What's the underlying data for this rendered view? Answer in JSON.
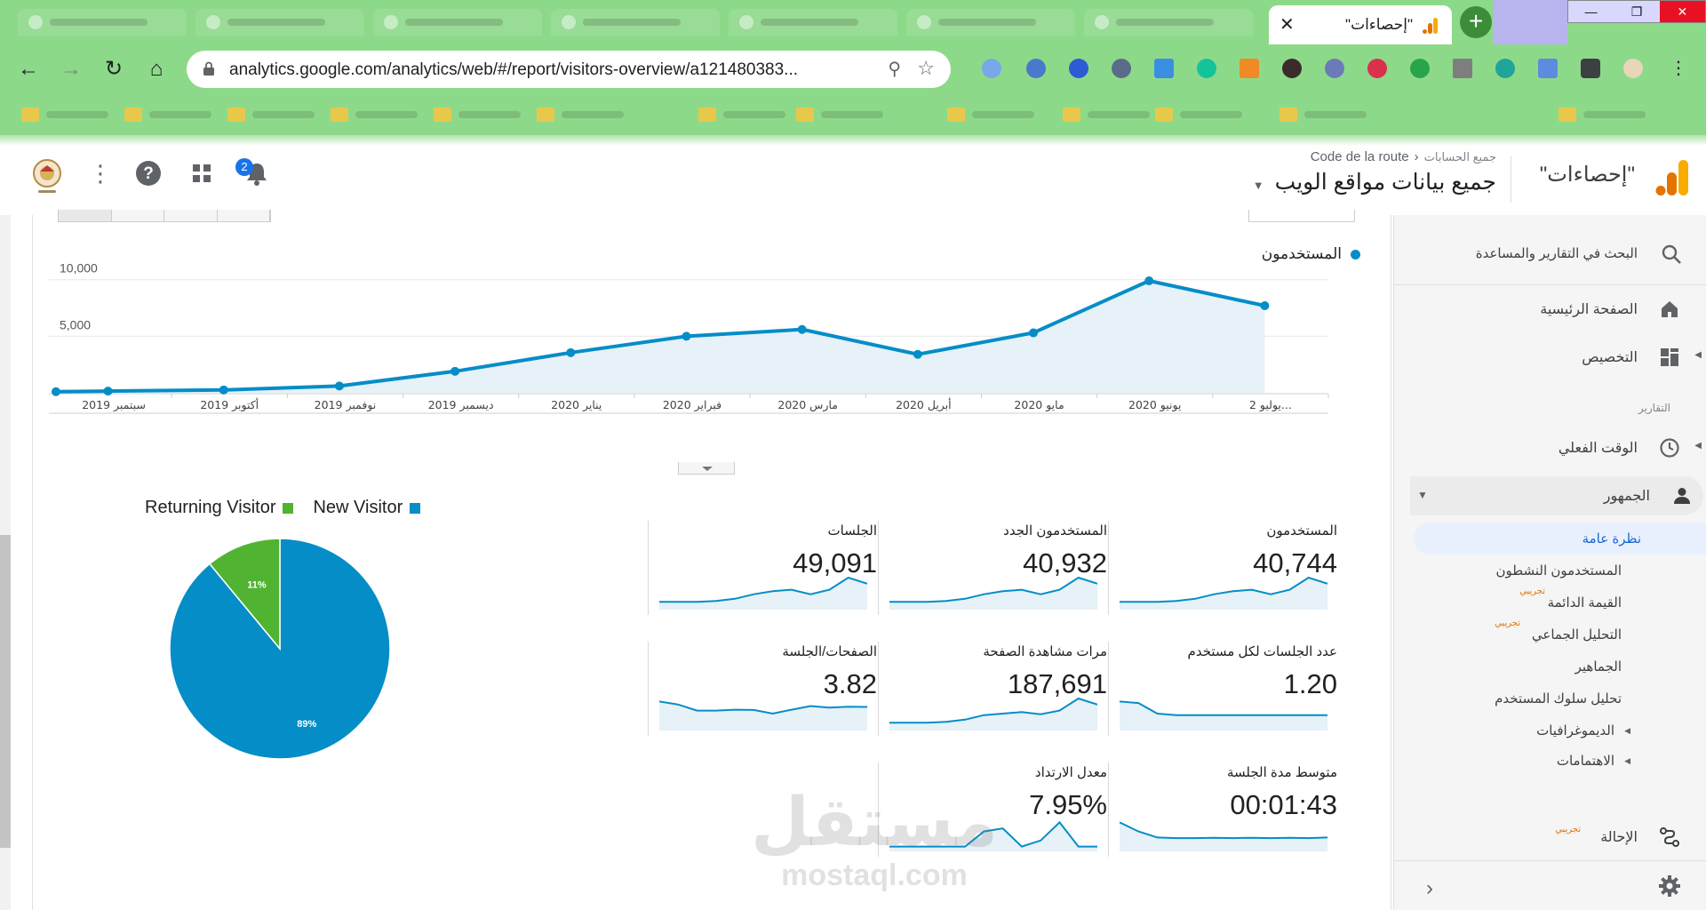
{
  "browser": {
    "active_tab_title": "\"إحصاءات\"",
    "url": "analytics.google.com/analytics/web/#/report/visitors-overview/a121480383...",
    "colors": {
      "chrome_green": "#8dd98a"
    }
  },
  "header": {
    "product_name": "\"إحصاءات\"",
    "breadcrumb_accounts": "جميع الحسابات",
    "breadcrumb_property": "Code de la route",
    "view_name": "جميع بيانات مواقع الويب",
    "notification_count": "2"
  },
  "chart_data": [
    {
      "type": "area",
      "legend": "المستخدمون",
      "categories": [
        "سبتمبر 2019",
        "أكتوبر 2019",
        "نوفمبر 2019",
        "ديسمبر 2019",
        "يناير 2020",
        "فبراير 2020",
        "مارس 2020",
        "أبريل 2020",
        "مايو 2020",
        "يونيو 2020",
        "يوليو 2..."
      ],
      "x_tick_positions": [
        0.5,
        1.5,
        2.5,
        3.5,
        4.5,
        5.5,
        6.5,
        7.5,
        8.5,
        9.5,
        10.5
      ],
      "x": [
        0,
        0.45,
        1.45,
        2.45,
        3.45,
        4.45,
        5.45,
        6.45,
        7.45,
        8.45,
        9.45,
        10.45
      ],
      "values": [
        100,
        150,
        250,
        600,
        1900,
        3550,
        5000,
        5600,
        3400,
        5300,
        9900,
        7700
      ],
      "y_ticks": [
        "5,000",
        "10,000"
      ],
      "y_tick_values": [
        5000,
        10000
      ],
      "ylim": [
        0,
        11000
      ],
      "color": "#058dc7",
      "fill": "#e6f1f8"
    },
    {
      "type": "pie",
      "series": [
        {
          "name": "New Visitor",
          "value": 89,
          "label": "89%",
          "color": "#058dc7"
        },
        {
          "name": "Returning Visitor",
          "value": 11,
          "label": "11%",
          "color": "#50b432"
        }
      ]
    }
  ],
  "metrics": [
    {
      "label": "المستخدمون",
      "value": "40,744",
      "spark": [
        2,
        2,
        2,
        2.3,
        3,
        4.5,
        5.5,
        6,
        4.5,
        6,
        10,
        8
      ]
    },
    {
      "label": "المستخدمون الجدد",
      "value": "40,932",
      "spark": [
        2,
        2,
        2,
        2.3,
        3,
        4.5,
        5.5,
        6,
        4.5,
        6,
        10,
        8
      ]
    },
    {
      "label": "الجلسات",
      "value": "49,091",
      "spark": [
        2,
        2,
        2,
        2.3,
        3,
        4.5,
        5.5,
        6,
        4.5,
        6,
        10,
        8
      ]
    },
    {
      "label": "عدد الجلسات لكل مستخدم",
      "value": "1.20",
      "spark": [
        9,
        8.5,
        5,
        4.5,
        4.5,
        4.5,
        4.5,
        4.5,
        4.5,
        4.5,
        4.5,
        4.5
      ]
    },
    {
      "label": "مرات مشاهدة الصفحة",
      "value": "187,691",
      "spark": [
        2,
        2,
        2,
        2.3,
        3,
        4.5,
        5,
        5.5,
        4.8,
        6,
        10,
        8
      ]
    },
    {
      "label": "الصفحات/الجلسة",
      "value": "3.82",
      "spark": [
        9,
        8,
        6,
        6,
        6.3,
        6.2,
        5,
        6.3,
        7.5,
        7,
        7.3,
        7.2
      ]
    },
    {
      "label": "متوسط مدة الجلسة",
      "value": "00:01:43",
      "spark": [
        9,
        6,
        4,
        3.8,
        3.8,
        3.9,
        3.8,
        3.9,
        3.8,
        3.9,
        3.8,
        4
      ]
    },
    {
      "label": "معدل الارتداد",
      "value": "7.95%",
      "spark": [
        1,
        1,
        1,
        1,
        1,
        6,
        7,
        1,
        3,
        9,
        1,
        1
      ]
    }
  ],
  "sidenav": {
    "search": "البحث في التقارير والمساعدة",
    "home": "الصفحة الرئيسية",
    "customize": "التخصيص",
    "reports_section": "التقارير",
    "realtime": "الوقت الفعلي",
    "audience": "الجمهور",
    "audience_items": [
      {
        "label": "نظرة عامة",
        "active": true
      },
      {
        "label": "المستخدمون النشطون"
      },
      {
        "label": "القيمة الدائمة",
        "beta": "تجريبي"
      },
      {
        "label": "التحليل الجماعي",
        "beta": "تجريبي"
      },
      {
        "label": "الجماهير"
      },
      {
        "label": "تحليل سلوك المستخدم"
      },
      {
        "label": "الديموغرافيات",
        "expandable": true
      },
      {
        "label": "الاهتمامات",
        "expandable": true
      }
    ],
    "referral": "الإحالة",
    "referral_beta": "تجريبي"
  },
  "watermark": {
    "arabic": "مستقل",
    "latin": "mostaql.com"
  }
}
